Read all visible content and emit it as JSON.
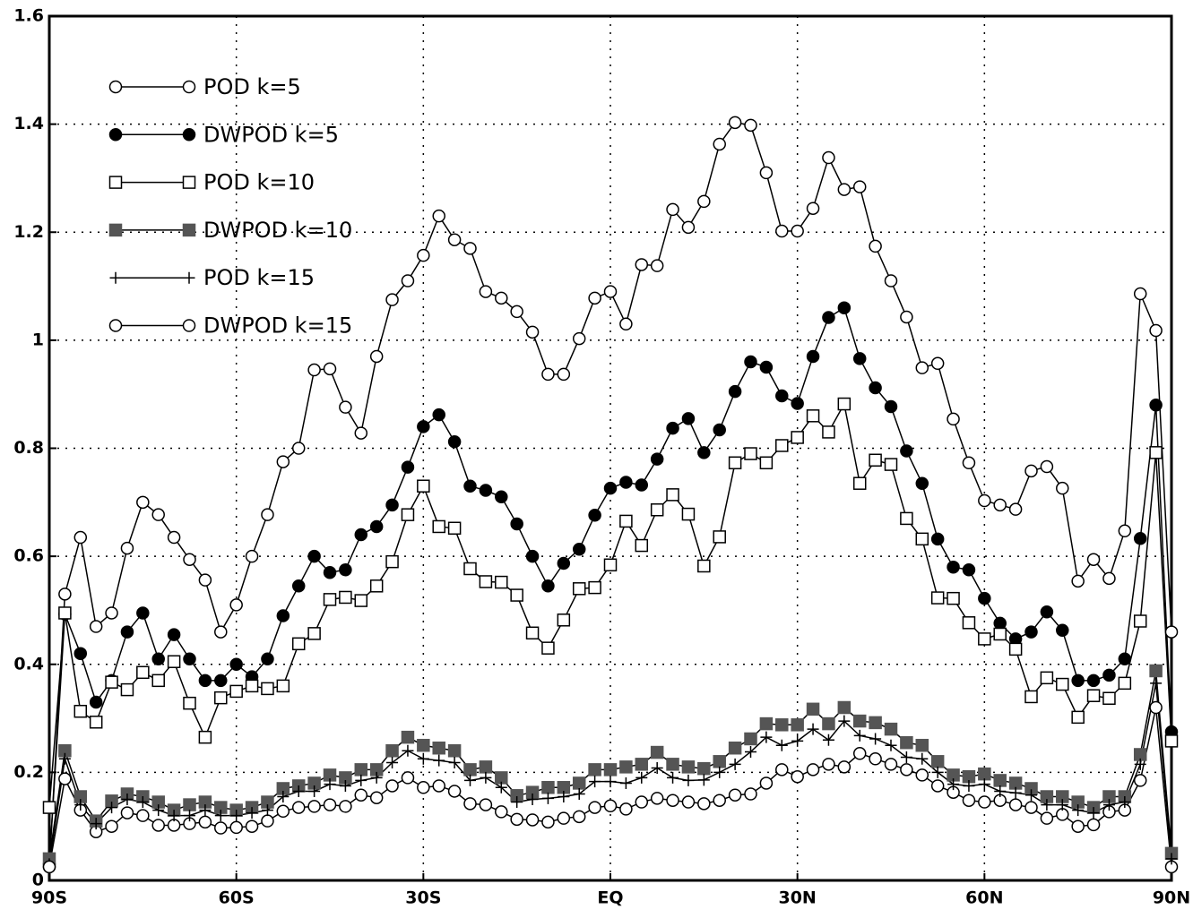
{
  "chart_data": {
    "type": "line",
    "x": [
      -90,
      -87.5,
      -85,
      -82.5,
      -80,
      -77.5,
      -75,
      -72.5,
      -70,
      -67.5,
      -65,
      -62.5,
      -60,
      -57.5,
      -55,
      -52.5,
      -50,
      -47.5,
      -45,
      -42.5,
      -40,
      -37.5,
      -35,
      -32.5,
      -30,
      -27.5,
      -25,
      -22.5,
      -20,
      -17.5,
      -15,
      -12.5,
      -10,
      -7.5,
      -5,
      -2.5,
      0,
      2.5,
      5,
      7.5,
      10,
      12.5,
      15,
      17.5,
      20,
      22.5,
      25,
      27.5,
      30,
      32.5,
      35,
      37.5,
      40,
      42.5,
      45,
      47.5,
      50,
      52.5,
      55,
      57.5,
      60,
      62.5,
      65,
      67.5,
      70,
      72.5,
      75,
      77.5,
      80,
      82.5,
      85,
      87.5,
      90
    ],
    "xlim": [
      -90,
      90
    ],
    "xticks": [
      {
        "value": -90,
        "label": "90S"
      },
      {
        "value": -60,
        "label": "60S"
      },
      {
        "value": -30,
        "label": "30S"
      },
      {
        "value": 0,
        "label": "EQ"
      },
      {
        "value": 30,
        "label": "30N"
      },
      {
        "value": 60,
        "label": "60N"
      },
      {
        "value": 90,
        "label": "90N"
      }
    ],
    "ylim": [
      0,
      1.6
    ],
    "yticks": [
      0,
      0.2,
      0.4,
      0.6,
      0.8,
      1,
      1.2,
      1.4,
      1.6
    ],
    "grid": true,
    "legend": "upper left",
    "series": [
      {
        "name": "POD k=5",
        "marker": "circle-open",
        "color": "#000000",
        "values": [
          0.025,
          0.188,
          0.13,
          0.09,
          0.1,
          0.125,
          0.12,
          0.102,
          0.102,
          0.105,
          0.108,
          0.097,
          0.098,
          0.1,
          0.11,
          0.128,
          0.135,
          0.137,
          0.14,
          0.137,
          0.158,
          0.153,
          0.175,
          0.19,
          0.172,
          0.175,
          0.165,
          0.142,
          0.14,
          0.127,
          0.113,
          0.112,
          0.108,
          0.115,
          0.118,
          0.135,
          0.138,
          0.132,
          0.145,
          0.152,
          0.148,
          0.145,
          0.142,
          0.148,
          0.158,
          0.16,
          0.18,
          0.205,
          0.192,
          0.205,
          0.215,
          0.21,
          0.235,
          0.225,
          0.215,
          0.205,
          0.195,
          0.175,
          0.163,
          0.148,
          0.145,
          0.148,
          0.14,
          0.135,
          0.115,
          0.122,
          0.1,
          0.103,
          0.127,
          0.13,
          0.185,
          0.32,
          0.025
        ]
      },
      {
        "name": "DWPOD k=5",
        "marker": "circle-filled",
        "color": "#000000",
        "values": [
          0.03,
          0.493,
          0.42,
          0.33,
          0.37,
          0.46,
          0.495,
          0.41,
          0.455,
          0.41,
          0.37,
          0.37,
          0.4,
          0.377,
          0.41,
          0.49,
          0.545,
          0.6,
          0.57,
          0.575,
          0.64,
          0.655,
          0.695,
          0.765,
          0.84,
          0.862,
          0.812,
          0.73,
          0.722,
          0.71,
          0.66,
          0.6,
          0.545,
          0.587,
          0.613,
          0.676,
          0.726,
          0.737,
          0.732,
          0.78,
          0.837,
          0.855,
          0.792,
          0.834,
          0.905,
          0.96,
          0.95,
          0.897,
          0.883,
          0.97,
          1.042,
          1.06,
          0.966,
          0.912,
          0.877,
          0.795,
          0.735,
          0.632,
          0.58,
          0.575,
          0.522,
          0.476,
          0.447,
          0.46,
          0.497,
          0.463,
          0.37,
          0.37,
          0.38,
          0.41,
          0.633,
          0.88,
          0.275
        ]
      },
      {
        "name": "POD k=10",
        "marker": "square-open",
        "color": "#000000",
        "values": [
          0.135,
          0.495,
          0.313,
          0.293,
          0.367,
          0.353,
          0.385,
          0.37,
          0.405,
          0.328,
          0.265,
          0.338,
          0.35,
          0.36,
          0.355,
          0.36,
          0.438,
          0.457,
          0.52,
          0.524,
          0.518,
          0.545,
          0.59,
          0.677,
          0.73,
          0.655,
          0.652,
          0.577,
          0.553,
          0.552,
          0.528,
          0.458,
          0.43,
          0.482,
          0.54,
          0.542,
          0.584,
          0.665,
          0.62,
          0.686,
          0.714,
          0.678,
          0.582,
          0.636,
          0.773,
          0.79,
          0.773,
          0.805,
          0.82,
          0.86,
          0.83,
          0.882,
          0.735,
          0.778,
          0.77,
          0.67,
          0.632,
          0.523,
          0.522,
          0.477,
          0.447,
          0.456,
          0.428,
          0.34,
          0.375,
          0.363,
          0.302,
          0.342,
          0.337,
          0.365,
          0.48,
          0.792,
          0.258
        ]
      },
      {
        "name": "DWPOD k=10",
        "marker": "square-filled",
        "color": "#555555",
        "values": [
          0.04,
          0.24,
          0.155,
          0.11,
          0.147,
          0.16,
          0.155,
          0.145,
          0.13,
          0.14,
          0.145,
          0.135,
          0.13,
          0.135,
          0.145,
          0.17,
          0.175,
          0.18,
          0.195,
          0.19,
          0.205,
          0.205,
          0.24,
          0.265,
          0.25,
          0.245,
          0.24,
          0.205,
          0.21,
          0.19,
          0.157,
          0.163,
          0.172,
          0.172,
          0.18,
          0.205,
          0.205,
          0.21,
          0.215,
          0.237,
          0.215,
          0.21,
          0.207,
          0.22,
          0.245,
          0.262,
          0.29,
          0.288,
          0.288,
          0.317,
          0.29,
          0.32,
          0.295,
          0.292,
          0.28,
          0.255,
          0.25,
          0.22,
          0.195,
          0.192,
          0.197,
          0.185,
          0.18,
          0.17,
          0.155,
          0.155,
          0.145,
          0.135,
          0.155,
          0.155,
          0.233,
          0.388,
          0.05
        ]
      },
      {
        "name": "POD k=15",
        "marker": "plus",
        "color": "#000000",
        "values": [
          0.03,
          0.225,
          0.14,
          0.105,
          0.135,
          0.15,
          0.145,
          0.13,
          0.12,
          0.12,
          0.13,
          0.12,
          0.12,
          0.125,
          0.13,
          0.155,
          0.165,
          0.165,
          0.178,
          0.175,
          0.185,
          0.19,
          0.218,
          0.24,
          0.225,
          0.222,
          0.218,
          0.185,
          0.19,
          0.172,
          0.145,
          0.15,
          0.152,
          0.155,
          0.16,
          0.183,
          0.183,
          0.18,
          0.19,
          0.208,
          0.19,
          0.185,
          0.186,
          0.2,
          0.215,
          0.238,
          0.265,
          0.25,
          0.258,
          0.28,
          0.26,
          0.295,
          0.268,
          0.262,
          0.25,
          0.228,
          0.225,
          0.2,
          0.178,
          0.175,
          0.178,
          0.165,
          0.162,
          0.158,
          0.14,
          0.14,
          0.13,
          0.125,
          0.14,
          0.145,
          0.215,
          0.365,
          0.04
        ]
      },
      {
        "name": "DWPOD k=15",
        "marker": "circle-open",
        "color": "#000000",
        "values": [
          0.025,
          0.53,
          0.635,
          0.47,
          0.495,
          0.615,
          0.7,
          0.677,
          0.635,
          0.594,
          0.556,
          0.46,
          0.51,
          0.6,
          0.677,
          0.775,
          0.8,
          0.945,
          0.947,
          0.876,
          0.828,
          0.97,
          1.075,
          1.11,
          1.157,
          1.23,
          1.186,
          1.17,
          1.09,
          1.078,
          1.053,
          1.015,
          0.937,
          0.937,
          1.003,
          1.078,
          1.09,
          1.03,
          1.14,
          1.138,
          1.242,
          1.209,
          1.257,
          1.363,
          1.403,
          1.398,
          1.31,
          1.202,
          1.202,
          1.244,
          1.338,
          1.279,
          1.284,
          1.174,
          1.11,
          1.043,
          0.949,
          0.957,
          0.854,
          0.773,
          0.703,
          0.695,
          0.687,
          0.758,
          0.766,
          0.726,
          0.554,
          0.594,
          0.559,
          0.647,
          1.086,
          1.018,
          0.46
        ]
      }
    ]
  }
}
